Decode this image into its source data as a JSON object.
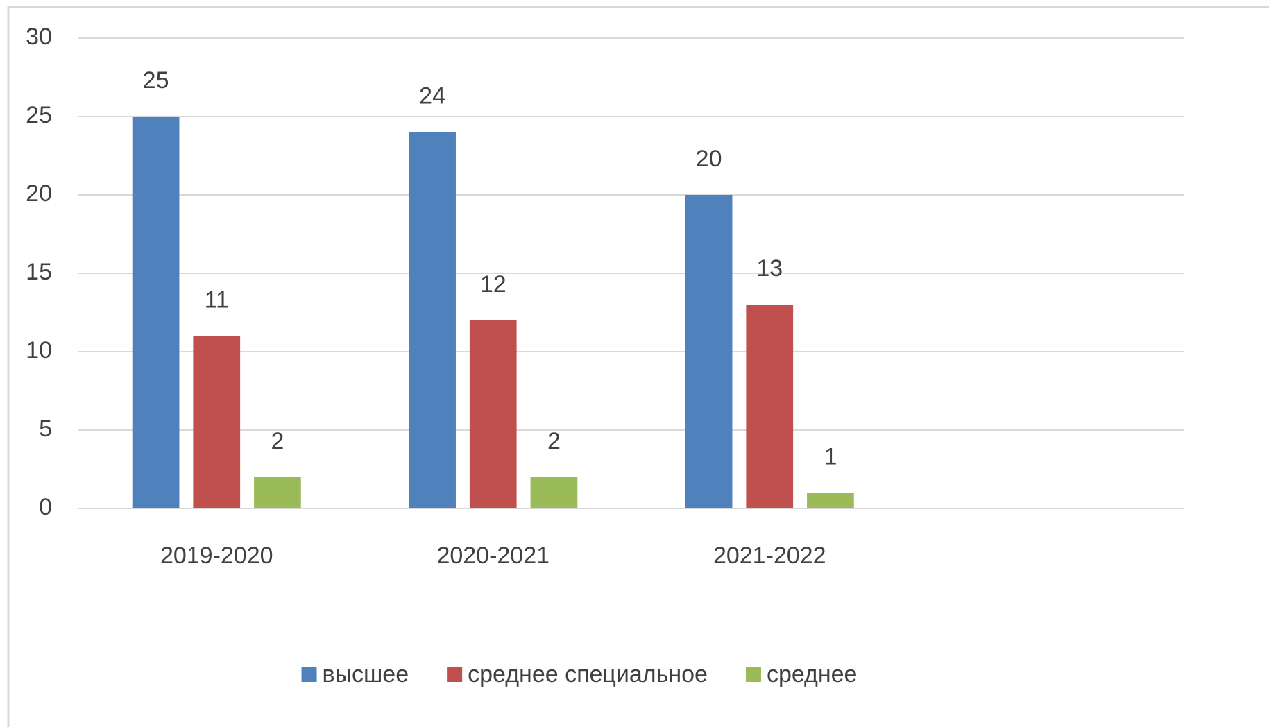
{
  "chart_data": {
    "type": "bar",
    "categories": [
      "2019-2020",
      "2020-2021",
      "2021-2022",
      null
    ],
    "series": [
      {
        "name": "высшее",
        "color": "#4f81bd",
        "values": [
          25,
          24,
          20,
          null
        ]
      },
      {
        "name": "среднее специальное",
        "color": "#c0504d",
        "values": [
          11,
          12,
          13,
          null
        ]
      },
      {
        "name": "среднее",
        "color": "#9bbb59",
        "values": [
          2,
          2,
          1,
          null
        ]
      }
    ],
    "ylim": [
      0,
      30
    ],
    "yticks": [
      0,
      5,
      10,
      15,
      20,
      25,
      30
    ],
    "grid": true,
    "legend": "bottom"
  }
}
